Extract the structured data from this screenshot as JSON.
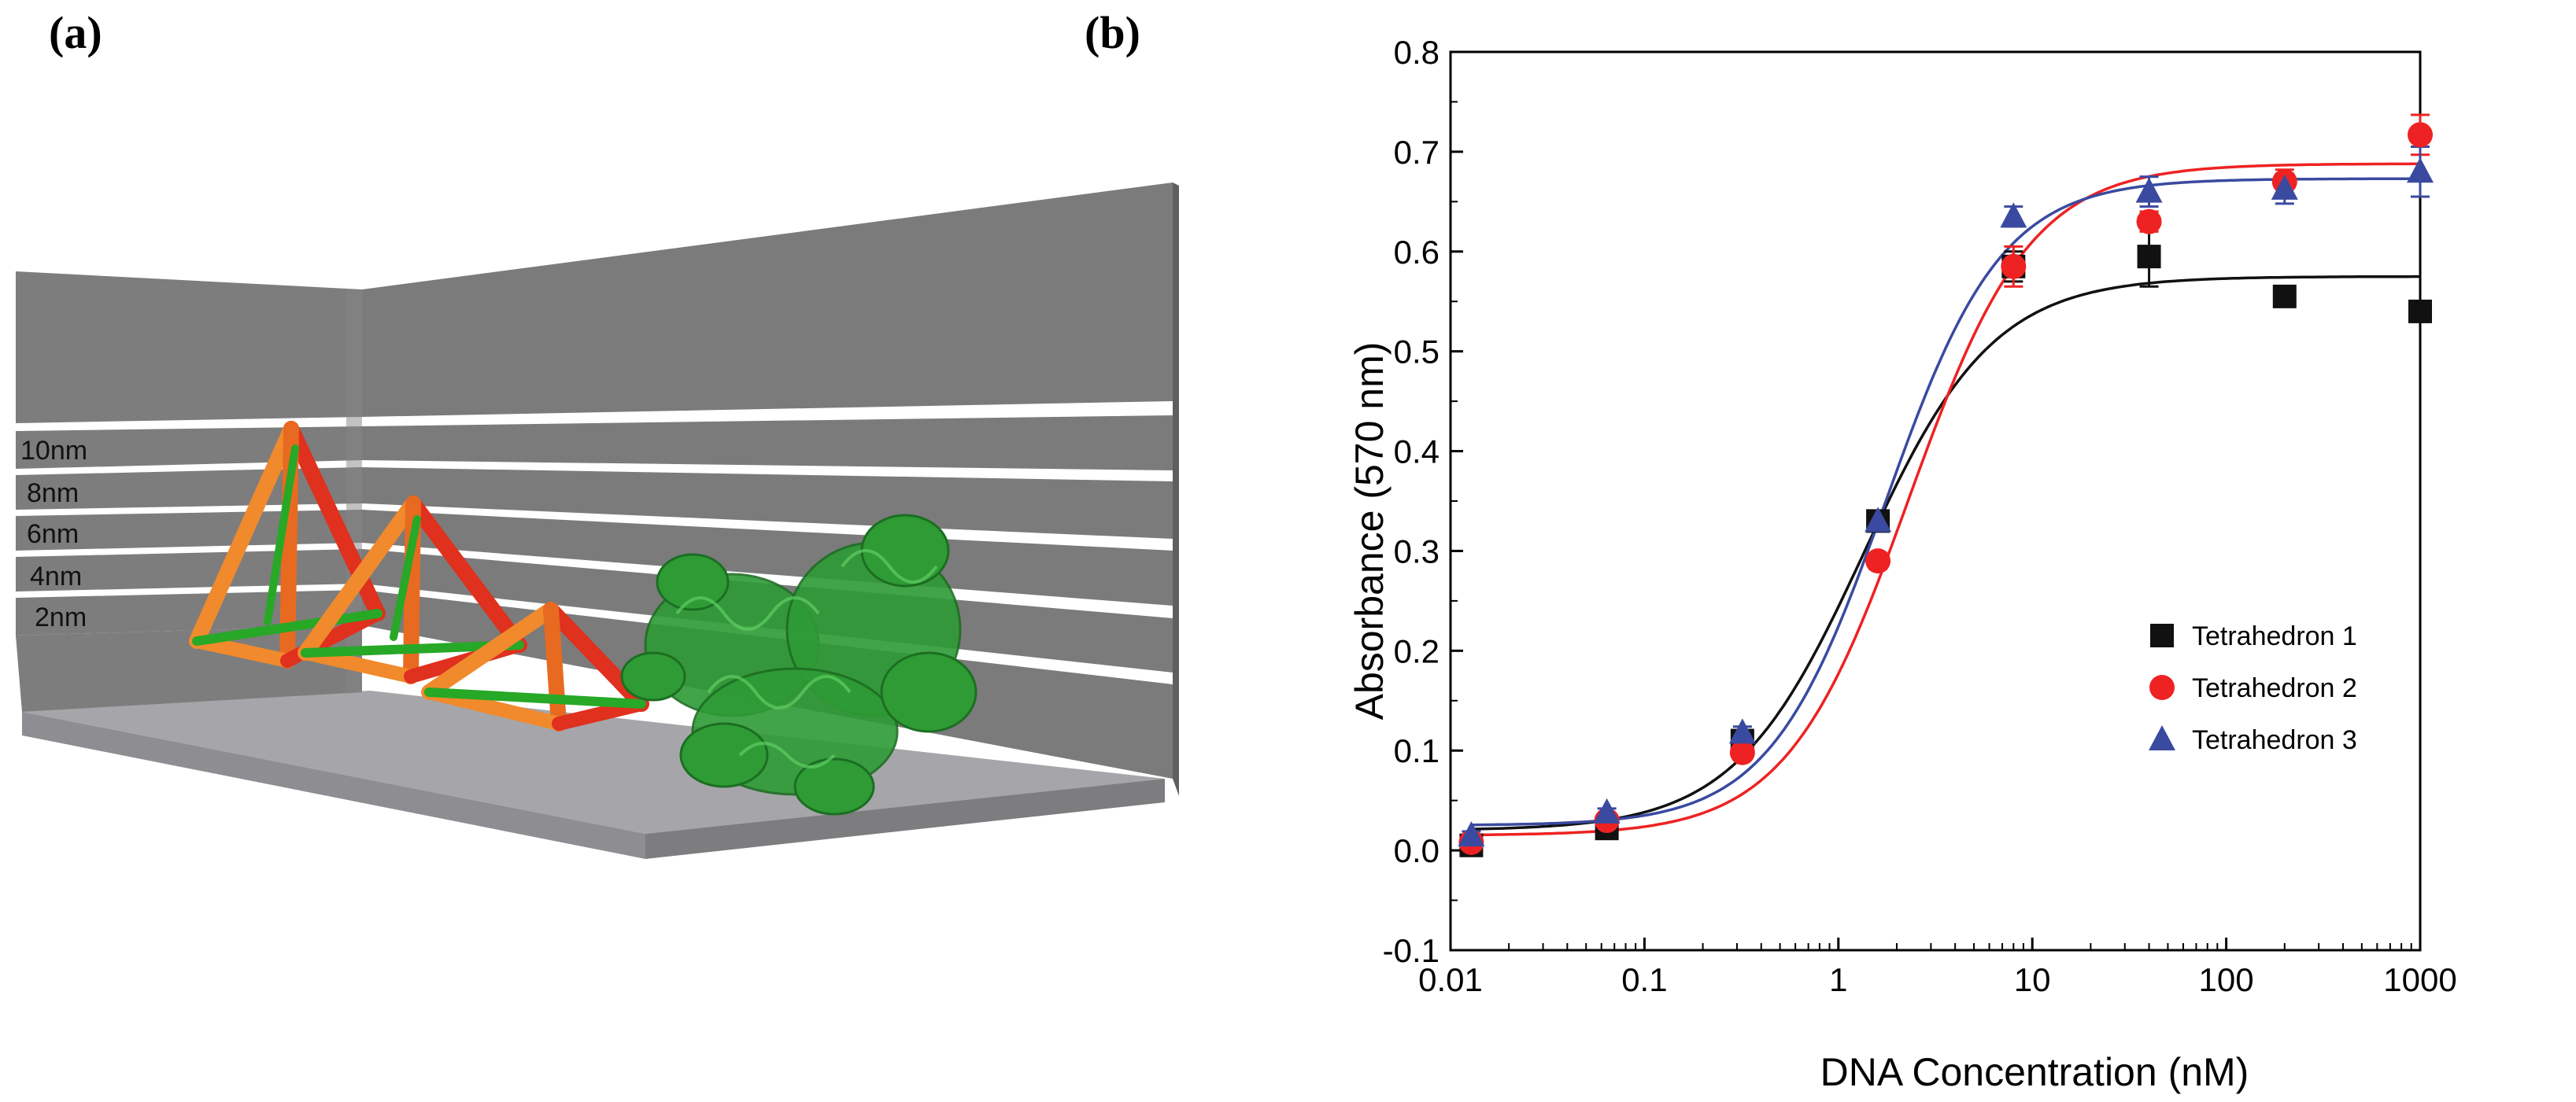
{
  "panel_a": {
    "label": "(a)",
    "scale_labels": [
      "10nm",
      "8nm",
      "6nm",
      "4nm",
      "2nm"
    ],
    "colors": {
      "wall": "#7c7c7c",
      "floor": "#a7a7ab",
      "tetra_red": "#e0301e",
      "tetra_orange": "#f08a2c",
      "tetra_green": "#27a826",
      "protein": "#2e9b35"
    }
  },
  "panel_b": {
    "label": "(b)"
  },
  "chart_data": {
    "type": "scatter",
    "xscale": "log",
    "xlabel": "DNA Concentration (nM)",
    "ylabel": "Absorbance (570 nm)",
    "xlim": [
      0.01,
      1000
    ],
    "ylim": [
      -0.1,
      0.8
    ],
    "xticks": [
      0.01,
      0.1,
      1,
      10,
      100,
      1000
    ],
    "xtick_labels": [
      "0.01",
      "0.1",
      "1",
      "10",
      "100",
      "1000"
    ],
    "yticks": [
      -0.1,
      0.0,
      0.1,
      0.2,
      0.3,
      0.4,
      0.5,
      0.6,
      0.7,
      0.8
    ],
    "ytick_labels": [
      "-0.1",
      "0.0",
      "0.1",
      "0.2",
      "0.3",
      "0.4",
      "0.5",
      "0.6",
      "0.7",
      "0.8"
    ],
    "legend_position": "lower-right",
    "x": [
      0.0128,
      0.064,
      0.32,
      1.6,
      8,
      40,
      200,
      1000
    ],
    "series": [
      {
        "name": "Tetrahedron 1",
        "marker": "square",
        "color": "#111111",
        "values": [
          0.005,
          0.022,
          0.11,
          0.33,
          0.585,
          0.595,
          0.555,
          0.54
        ],
        "errors": [
          0.004,
          0.004,
          0.006,
          0.01,
          0.015,
          0.03,
          0.008,
          0.008
        ],
        "fit": {
          "bottom": 0.02,
          "top": 0.575,
          "ec50": 1.35,
          "hill": 1.3
        }
      },
      {
        "name": "Tetrahedron 2",
        "marker": "circle",
        "color": "#ee2222",
        "values": [
          0.008,
          0.03,
          0.098,
          0.29,
          0.585,
          0.63,
          0.67,
          0.717
        ],
        "errors": [
          0.004,
          0.004,
          0.006,
          0.008,
          0.02,
          0.01,
          0.012,
          0.02
        ],
        "fit": {
          "bottom": 0.015,
          "top": 0.688,
          "ec50": 2.3,
          "hill": 1.38
        }
      },
      {
        "name": "Tetrahedron 3",
        "marker": "triangle",
        "color": "#3a4aa0",
        "values": [
          0.015,
          0.038,
          0.118,
          0.33,
          0.635,
          0.66,
          0.663,
          0.68
        ],
        "errors": [
          0.004,
          0.004,
          0.006,
          0.008,
          0.01,
          0.015,
          0.015,
          0.025
        ],
        "fit": {
          "bottom": 0.025,
          "top": 0.673,
          "ec50": 1.75,
          "hill": 1.45
        }
      }
    ]
  }
}
